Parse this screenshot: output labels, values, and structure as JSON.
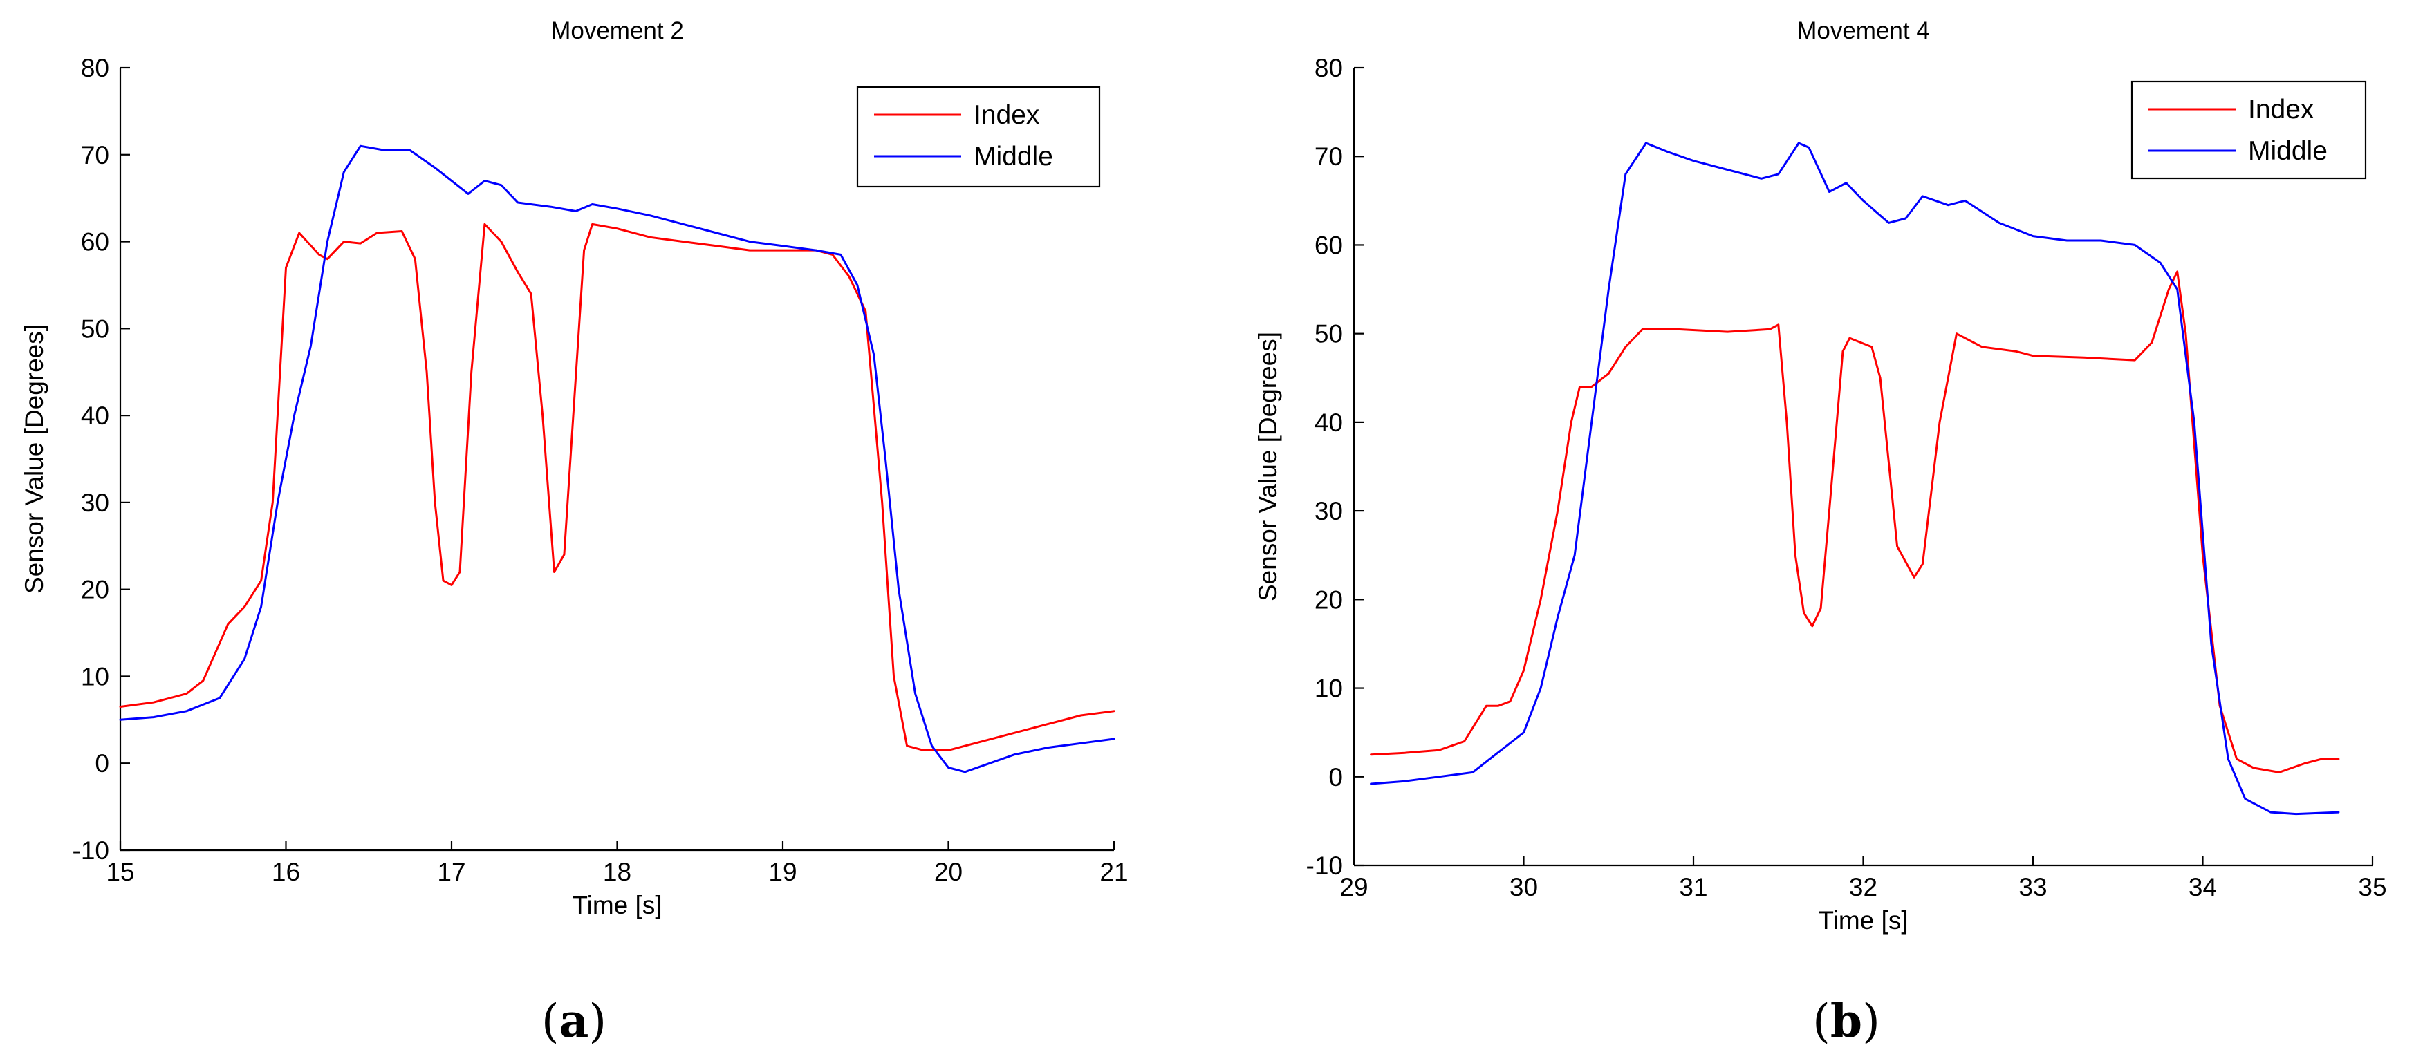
{
  "chart_data": [
    {
      "type": "line",
      "panel_label": "a",
      "title": "Movement 2",
      "xlabel": "Time [s]",
      "ylabel": "Sensor Value [Degrees]",
      "xlim": [
        15,
        21
      ],
      "ylim": [
        -10,
        80
      ],
      "xticks": [
        15,
        16,
        17,
        18,
        19,
        20,
        21
      ],
      "yticks": [
        -10,
        0,
        10,
        20,
        30,
        40,
        50,
        60,
        70,
        80
      ],
      "legend_position": "top-right",
      "series": [
        {
          "name": "Index",
          "color": "#ff0000",
          "points": [
            [
              15.0,
              6.5
            ],
            [
              15.2,
              7.0
            ],
            [
              15.4,
              8.0
            ],
            [
              15.5,
              9.5
            ],
            [
              15.65,
              16.0
            ],
            [
              15.75,
              18.0
            ],
            [
              15.85,
              21.0
            ],
            [
              15.92,
              30.0
            ],
            [
              16.0,
              57.0
            ],
            [
              16.08,
              61.0
            ],
            [
              16.2,
              58.5
            ],
            [
              16.25,
              58.0
            ],
            [
              16.35,
              60.0
            ],
            [
              16.45,
              59.8
            ],
            [
              16.55,
              61.0
            ],
            [
              16.7,
              61.2
            ],
            [
              16.78,
              58.0
            ],
            [
              16.85,
              45.0
            ],
            [
              16.9,
              30.0
            ],
            [
              16.95,
              21.0
            ],
            [
              17.0,
              20.5
            ],
            [
              17.05,
              22.0
            ],
            [
              17.12,
              45.0
            ],
            [
              17.2,
              62.0
            ],
            [
              17.3,
              60.0
            ],
            [
              17.4,
              56.5
            ],
            [
              17.48,
              54.0
            ],
            [
              17.55,
              40.0
            ],
            [
              17.62,
              22.0
            ],
            [
              17.68,
              24.0
            ],
            [
              17.8,
              59.0
            ],
            [
              17.85,
              62.0
            ],
            [
              18.0,
              61.5
            ],
            [
              18.2,
              60.5
            ],
            [
              18.4,
              60.0
            ],
            [
              18.6,
              59.5
            ],
            [
              18.8,
              59.0
            ],
            [
              19.0,
              59.0
            ],
            [
              19.2,
              59.0
            ],
            [
              19.3,
              58.5
            ],
            [
              19.4,
              56.0
            ],
            [
              19.5,
              52.0
            ],
            [
              19.6,
              30.0
            ],
            [
              19.67,
              10.0
            ],
            [
              19.75,
              2.0
            ],
            [
              19.85,
              1.5
            ],
            [
              20.0,
              1.5
            ],
            [
              20.2,
              2.5
            ],
            [
              20.4,
              3.5
            ],
            [
              20.6,
              4.5
            ],
            [
              20.8,
              5.5
            ],
            [
              21.0,
              6.0
            ]
          ]
        },
        {
          "name": "Middle",
          "color": "#0000ff",
          "points": [
            [
              15.0,
              5.0
            ],
            [
              15.2,
              5.3
            ],
            [
              15.4,
              6.0
            ],
            [
              15.6,
              7.5
            ],
            [
              15.75,
              12.0
            ],
            [
              15.85,
              18.0
            ],
            [
              15.95,
              30.0
            ],
            [
              16.05,
              40.0
            ],
            [
              16.15,
              48.0
            ],
            [
              16.25,
              60.0
            ],
            [
              16.35,
              68.0
            ],
            [
              16.45,
              71.0
            ],
            [
              16.6,
              70.5
            ],
            [
              16.75,
              70.5
            ],
            [
              16.9,
              68.5
            ],
            [
              17.0,
              67.0
            ],
            [
              17.1,
              65.5
            ],
            [
              17.2,
              67.0
            ],
            [
              17.3,
              66.5
            ],
            [
              17.4,
              64.5
            ],
            [
              17.6,
              64.0
            ],
            [
              17.75,
              63.5
            ],
            [
              17.85,
              64.3
            ],
            [
              18.0,
              63.8
            ],
            [
              18.2,
              63.0
            ],
            [
              18.4,
              62.0
            ],
            [
              18.6,
              61.0
            ],
            [
              18.8,
              60.0
            ],
            [
              19.0,
              59.5
            ],
            [
              19.2,
              59.0
            ],
            [
              19.35,
              58.5
            ],
            [
              19.45,
              55.0
            ],
            [
              19.55,
              47.0
            ],
            [
              19.62,
              35.0
            ],
            [
              19.7,
              20.0
            ],
            [
              19.8,
              8.0
            ],
            [
              19.9,
              2.0
            ],
            [
              20.0,
              -0.5
            ],
            [
              20.1,
              -1.0
            ],
            [
              20.25,
              0.0
            ],
            [
              20.4,
              1.0
            ],
            [
              20.6,
              1.8
            ],
            [
              20.8,
              2.3
            ],
            [
              21.0,
              2.8
            ]
          ]
        }
      ]
    },
    {
      "type": "line",
      "panel_label": "b",
      "title": "Movement 4",
      "xlabel": "Time [s]",
      "ylabel": "Sensor Value [Degrees]",
      "xlim": [
        29,
        35
      ],
      "ylim": [
        -10,
        80
      ],
      "xticks": [
        29,
        30,
        31,
        32,
        33,
        34,
        35
      ],
      "yticks": [
        -10,
        0,
        10,
        20,
        30,
        40,
        50,
        60,
        70,
        80
      ],
      "legend_position": "top-right",
      "series": [
        {
          "name": "Index",
          "color": "#ff0000",
          "points": [
            [
              29.1,
              2.5
            ],
            [
              29.3,
              2.7
            ],
            [
              29.5,
              3.0
            ],
            [
              29.65,
              4.0
            ],
            [
              29.78,
              8.0
            ],
            [
              29.85,
              8.0
            ],
            [
              29.92,
              8.5
            ],
            [
              30.0,
              12.0
            ],
            [
              30.1,
              20.0
            ],
            [
              30.2,
              30.0
            ],
            [
              30.28,
              40.0
            ],
            [
              30.33,
              44.0
            ],
            [
              30.4,
              44.0
            ],
            [
              30.5,
              45.5
            ],
            [
              30.6,
              48.5
            ],
            [
              30.7,
              50.5
            ],
            [
              30.9,
              50.5
            ],
            [
              31.2,
              50.2
            ],
            [
              31.45,
              50.5
            ],
            [
              31.5,
              51.0
            ],
            [
              31.55,
              40.0
            ],
            [
              31.6,
              25.0
            ],
            [
              31.65,
              18.5
            ],
            [
              31.7,
              17.0
            ],
            [
              31.75,
              19.0
            ],
            [
              31.8,
              30.0
            ],
            [
              31.88,
              48.0
            ],
            [
              31.92,
              49.5
            ],
            [
              32.05,
              48.5
            ],
            [
              32.1,
              45.0
            ],
            [
              32.2,
              26.0
            ],
            [
              32.3,
              22.5
            ],
            [
              32.35,
              24.0
            ],
            [
              32.45,
              40.0
            ],
            [
              32.55,
              50.0
            ],
            [
              32.7,
              48.5
            ],
            [
              32.9,
              48.0
            ],
            [
              33.0,
              47.5
            ],
            [
              33.3,
              47.3
            ],
            [
              33.6,
              47.0
            ],
            [
              33.7,
              49.0
            ],
            [
              33.8,
              55.0
            ],
            [
              33.85,
              57.0
            ],
            [
              33.9,
              50.0
            ],
            [
              34.0,
              25.0
            ],
            [
              34.1,
              8.0
            ],
            [
              34.2,
              2.0
            ],
            [
              34.3,
              1.0
            ],
            [
              34.45,
              0.5
            ],
            [
              34.6,
              1.5
            ],
            [
              34.7,
              2.0
            ],
            [
              34.8,
              2.0
            ]
          ]
        },
        {
          "name": "Middle",
          "color": "#0000ff",
          "points": [
            [
              29.1,
              -0.8
            ],
            [
              29.3,
              -0.5
            ],
            [
              29.5,
              0.0
            ],
            [
              29.7,
              0.5
            ],
            [
              29.8,
              2.0
            ],
            [
              29.9,
              3.5
            ],
            [
              30.0,
              5.0
            ],
            [
              30.1,
              10.0
            ],
            [
              30.2,
              18.0
            ],
            [
              30.3,
              25.0
            ],
            [
              30.4,
              40.0
            ],
            [
              30.5,
              55.0
            ],
            [
              30.6,
              68.0
            ],
            [
              30.72,
              71.5
            ],
            [
              30.85,
              70.5
            ],
            [
              31.0,
              69.5
            ],
            [
              31.2,
              68.5
            ],
            [
              31.4,
              67.5
            ],
            [
              31.5,
              68.0
            ],
            [
              31.62,
              71.5
            ],
            [
              31.68,
              71.0
            ],
            [
              31.8,
              66.0
            ],
            [
              31.9,
              67.0
            ],
            [
              32.0,
              65.0
            ],
            [
              32.15,
              62.5
            ],
            [
              32.25,
              63.0
            ],
            [
              32.35,
              65.5
            ],
            [
              32.5,
              64.5
            ],
            [
              32.6,
              65.0
            ],
            [
              32.8,
              62.5
            ],
            [
              33.0,
              61.0
            ],
            [
              33.2,
              60.5
            ],
            [
              33.4,
              60.5
            ],
            [
              33.6,
              60.0
            ],
            [
              33.75,
              58.0
            ],
            [
              33.85,
              55.0
            ],
            [
              33.95,
              40.0
            ],
            [
              34.05,
              15.0
            ],
            [
              34.15,
              2.0
            ],
            [
              34.25,
              -2.5
            ],
            [
              34.4,
              -4.0
            ],
            [
              34.55,
              -4.2
            ],
            [
              34.8,
              -4.0
            ]
          ]
        }
      ]
    }
  ]
}
